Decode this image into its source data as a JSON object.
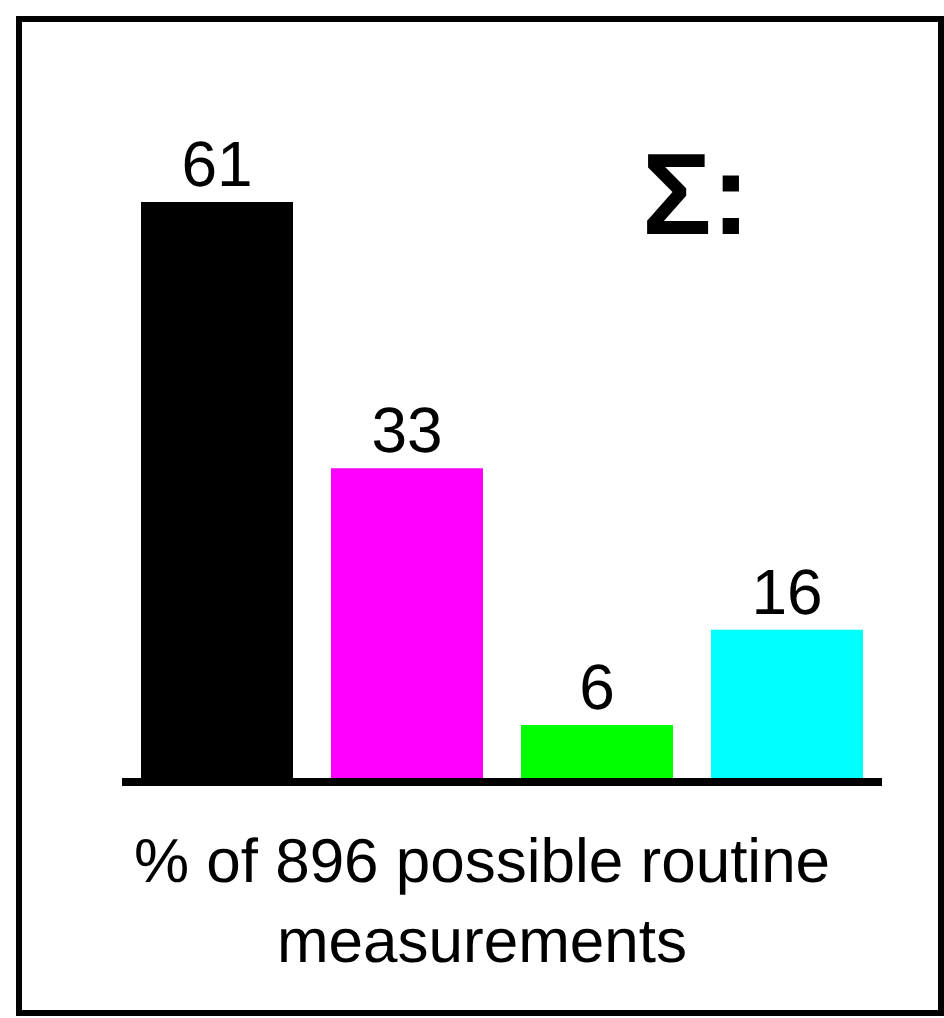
{
  "chart_data": {
    "type": "bar",
    "title": "Σ:",
    "xlabel": "% of 896 possible routine measurements",
    "categories": [
      null,
      null,
      null,
      null
    ],
    "values": [
      61,
      33,
      6,
      16
    ],
    "colors": [
      "#000000",
      "#ff00ff",
      "#00ff00",
      "#00ffff"
    ],
    "data_labels": true,
    "grid": false,
    "legend": false
  }
}
